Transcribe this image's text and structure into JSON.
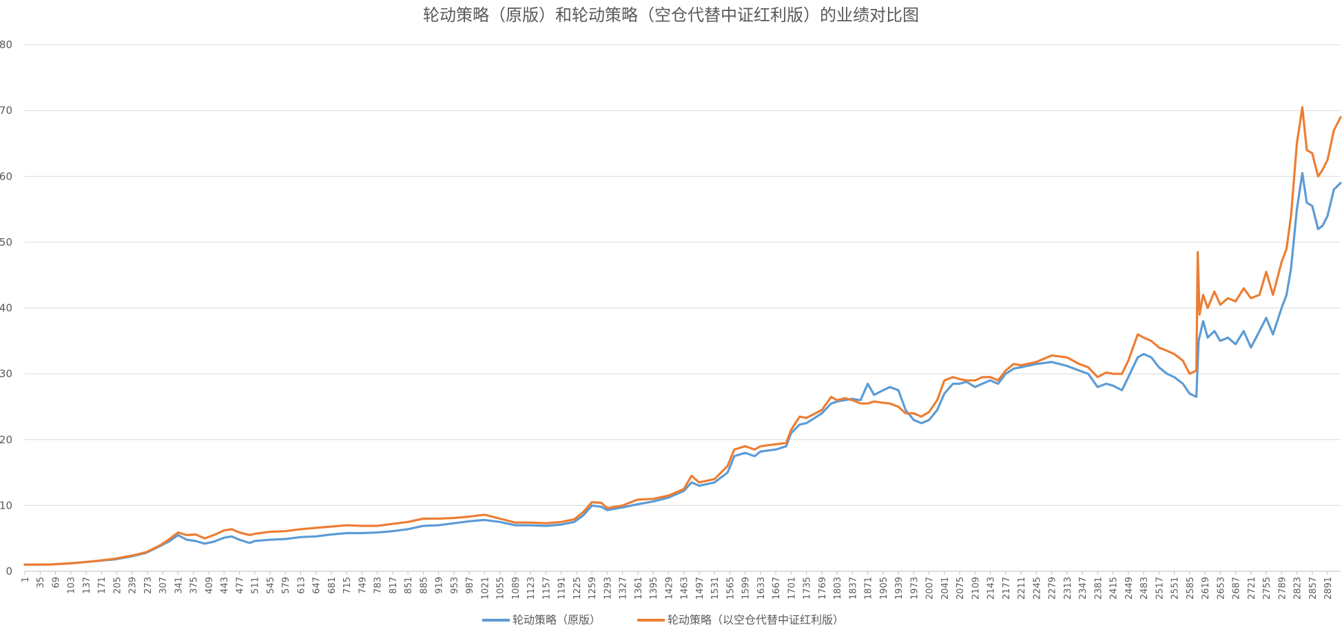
{
  "chart_data": {
    "type": "line",
    "title": "轮动策略（原版）和轮动策略（空仓代替中证红利版）的业绩对比图",
    "xlabel": "",
    "ylabel": "",
    "xlim": [
      1,
      2920
    ],
    "ylim": [
      0,
      80
    ],
    "y_ticks": [
      0,
      10,
      20,
      30,
      40,
      50,
      60,
      70,
      80
    ],
    "x_tick_labels": [
      "1",
      "35",
      "69",
      "103",
      "137",
      "171",
      "205",
      "239",
      "273",
      "307",
      "341",
      "375",
      "409",
      "443",
      "477",
      "511",
      "545",
      "579",
      "613",
      "647",
      "681",
      "715",
      "749",
      "783",
      "817",
      "851",
      "885",
      "919",
      "953",
      "987",
      "1021",
      "1055",
      "1089",
      "1123",
      "1157",
      "1191",
      "1225",
      "1259",
      "1293",
      "1327",
      "1361",
      "1395",
      "1429",
      "1463",
      "1497",
      "1531",
      "1565",
      "1599",
      "1633",
      "1667",
      "1701",
      "1735",
      "1769",
      "1803",
      "1837",
      "1871",
      "1905",
      "1939",
      "1973",
      "2007",
      "2041",
      "2075",
      "2109",
      "2143",
      "2177",
      "2211",
      "2245",
      "2279",
      "2313",
      "2347",
      "2381",
      "2415",
      "2449",
      "2483",
      "2517",
      "2551",
      "2585",
      "2619",
      "2653",
      "2687",
      "2721",
      "2755",
      "2789",
      "2823",
      "2857",
      "2891"
    ],
    "grid": "horizontal",
    "legend_position": "bottom",
    "series": [
      {
        "name": "轮动策略（原版）",
        "color": "#5b9bd5",
        "points": [
          [
            1,
            1.0
          ],
          [
            60,
            1.05
          ],
          [
            100,
            1.2
          ],
          [
            150,
            1.5
          ],
          [
            200,
            1.8
          ],
          [
            240,
            2.3
          ],
          [
            270,
            2.8
          ],
          [
            300,
            3.8
          ],
          [
            320,
            4.5
          ],
          [
            341,
            5.5
          ],
          [
            360,
            4.8
          ],
          [
            380,
            4.6
          ],
          [
            400,
            4.2
          ],
          [
            420,
            4.5
          ],
          [
            443,
            5.1
          ],
          [
            460,
            5.3
          ],
          [
            477,
            4.8
          ],
          [
            500,
            4.3
          ],
          [
            511,
            4.6
          ],
          [
            545,
            4.8
          ],
          [
            579,
            4.9
          ],
          [
            613,
            5.2
          ],
          [
            647,
            5.3
          ],
          [
            681,
            5.6
          ],
          [
            715,
            5.8
          ],
          [
            749,
            5.8
          ],
          [
            783,
            5.9
          ],
          [
            817,
            6.1
          ],
          [
            851,
            6.4
          ],
          [
            885,
            6.9
          ],
          [
            919,
            7.0
          ],
          [
            953,
            7.3
          ],
          [
            987,
            7.6
          ],
          [
            1021,
            7.8
          ],
          [
            1055,
            7.5
          ],
          [
            1089,
            7.0
          ],
          [
            1123,
            7.0
          ],
          [
            1157,
            6.9
          ],
          [
            1191,
            7.1
          ],
          [
            1220,
            7.5
          ],
          [
            1240,
            8.5
          ],
          [
            1259,
            10.0
          ],
          [
            1280,
            9.8
          ],
          [
            1293,
            9.3
          ],
          [
            1327,
            9.7
          ],
          [
            1361,
            10.2
          ],
          [
            1395,
            10.6
          ],
          [
            1429,
            11.2
          ],
          [
            1463,
            12.2
          ],
          [
            1480,
            13.5
          ],
          [
            1497,
            13.0
          ],
          [
            1531,
            13.5
          ],
          [
            1560,
            15.0
          ],
          [
            1575,
            17.5
          ],
          [
            1599,
            18.0
          ],
          [
            1620,
            17.5
          ],
          [
            1633,
            18.2
          ],
          [
            1667,
            18.5
          ],
          [
            1690,
            19.0
          ],
          [
            1701,
            21.0
          ],
          [
            1720,
            22.3
          ],
          [
            1735,
            22.5
          ],
          [
            1769,
            24.0
          ],
          [
            1790,
            25.5
          ],
          [
            1803,
            25.8
          ],
          [
            1820,
            26.0
          ],
          [
            1837,
            26.2
          ],
          [
            1855,
            26.0
          ],
          [
            1871,
            28.5
          ],
          [
            1885,
            26.8
          ],
          [
            1905,
            27.5
          ],
          [
            1920,
            28.0
          ],
          [
            1939,
            27.5
          ],
          [
            1955,
            24.5
          ],
          [
            1973,
            23.0
          ],
          [
            1990,
            22.5
          ],
          [
            2007,
            23.0
          ],
          [
            2025,
            24.5
          ],
          [
            2041,
            27.0
          ],
          [
            2060,
            28.5
          ],
          [
            2075,
            28.5
          ],
          [
            2090,
            28.8
          ],
          [
            2109,
            28.0
          ],
          [
            2125,
            28.5
          ],
          [
            2143,
            29.0
          ],
          [
            2160,
            28.5
          ],
          [
            2177,
            30.0
          ],
          [
            2195,
            30.8
          ],
          [
            2211,
            31.0
          ],
          [
            2245,
            31.5
          ],
          [
            2279,
            31.8
          ],
          [
            2313,
            31.2
          ],
          [
            2340,
            30.5
          ],
          [
            2360,
            30.0
          ],
          [
            2381,
            28.0
          ],
          [
            2400,
            28.5
          ],
          [
            2415,
            28.2
          ],
          [
            2435,
            27.5
          ],
          [
            2449,
            29.5
          ],
          [
            2470,
            32.5
          ],
          [
            2483,
            33.0
          ],
          [
            2500,
            32.5
          ],
          [
            2517,
            31.0
          ],
          [
            2535,
            30.0
          ],
          [
            2551,
            29.5
          ],
          [
            2570,
            28.5
          ],
          [
            2585,
            27.0
          ],
          [
            2600,
            26.5
          ],
          [
            2605,
            35.0
          ],
          [
            2615,
            38.0
          ],
          [
            2625,
            35.5
          ],
          [
            2640,
            36.5
          ],
          [
            2653,
            35.0
          ],
          [
            2670,
            35.5
          ],
          [
            2687,
            34.5
          ],
          [
            2705,
            36.5
          ],
          [
            2721,
            34.0
          ],
          [
            2740,
            36.5
          ],
          [
            2755,
            38.5
          ],
          [
            2770,
            36.0
          ],
          [
            2789,
            40.0
          ],
          [
            2800,
            42.0
          ],
          [
            2810,
            46.0
          ],
          [
            2823,
            55.0
          ],
          [
            2835,
            60.5
          ],
          [
            2845,
            56.0
          ],
          [
            2857,
            55.5
          ],
          [
            2870,
            52.0
          ],
          [
            2880,
            52.5
          ],
          [
            2891,
            54.0
          ],
          [
            2905,
            58.0
          ],
          [
            2920,
            59.0
          ]
        ]
      },
      {
        "name": "轮动策略（以空仓代替中证红利版）",
        "color": "#ed7d31",
        "points": [
          [
            1,
            1.0
          ],
          [
            60,
            1.05
          ],
          [
            100,
            1.2
          ],
          [
            150,
            1.5
          ],
          [
            200,
            1.9
          ],
          [
            240,
            2.4
          ],
          [
            270,
            2.9
          ],
          [
            300,
            3.9
          ],
          [
            320,
            4.8
          ],
          [
            341,
            5.9
          ],
          [
            360,
            5.5
          ],
          [
            380,
            5.6
          ],
          [
            400,
            5.0
          ],
          [
            420,
            5.5
          ],
          [
            443,
            6.2
          ],
          [
            460,
            6.4
          ],
          [
            477,
            5.9
          ],
          [
            500,
            5.5
          ],
          [
            511,
            5.7
          ],
          [
            545,
            6.0
          ],
          [
            579,
            6.1
          ],
          [
            613,
            6.4
          ],
          [
            647,
            6.6
          ],
          [
            681,
            6.8
          ],
          [
            715,
            7.0
          ],
          [
            749,
            6.9
          ],
          [
            783,
            6.9
          ],
          [
            817,
            7.2
          ],
          [
            851,
            7.5
          ],
          [
            885,
            8.0
          ],
          [
            919,
            8.0
          ],
          [
            953,
            8.1
          ],
          [
            987,
            8.3
          ],
          [
            1021,
            8.6
          ],
          [
            1055,
            8.0
          ],
          [
            1089,
            7.4
          ],
          [
            1123,
            7.4
          ],
          [
            1157,
            7.3
          ],
          [
            1191,
            7.5
          ],
          [
            1220,
            7.9
          ],
          [
            1240,
            9.0
          ],
          [
            1259,
            10.5
          ],
          [
            1280,
            10.4
          ],
          [
            1293,
            9.6
          ],
          [
            1327,
            10.0
          ],
          [
            1361,
            10.9
          ],
          [
            1395,
            11.0
          ],
          [
            1429,
            11.5
          ],
          [
            1463,
            12.5
          ],
          [
            1480,
            14.5
          ],
          [
            1497,
            13.5
          ],
          [
            1531,
            14.0
          ],
          [
            1560,
            16.0
          ],
          [
            1575,
            18.5
          ],
          [
            1599,
            19.0
          ],
          [
            1620,
            18.5
          ],
          [
            1633,
            19.0
          ],
          [
            1667,
            19.3
          ],
          [
            1690,
            19.5
          ],
          [
            1701,
            21.5
          ],
          [
            1720,
            23.5
          ],
          [
            1735,
            23.3
          ],
          [
            1769,
            24.5
          ],
          [
            1790,
            26.5
          ],
          [
            1803,
            26.0
          ],
          [
            1820,
            26.3
          ],
          [
            1837,
            26.0
          ],
          [
            1855,
            25.5
          ],
          [
            1871,
            25.5
          ],
          [
            1885,
            25.8
          ],
          [
            1905,
            25.6
          ],
          [
            1920,
            25.5
          ],
          [
            1939,
            25.0
          ],
          [
            1955,
            24.0
          ],
          [
            1973,
            24.0
          ],
          [
            1990,
            23.5
          ],
          [
            2007,
            24.2
          ],
          [
            2025,
            26.0
          ],
          [
            2041,
            29.0
          ],
          [
            2060,
            29.5
          ],
          [
            2075,
            29.2
          ],
          [
            2090,
            29.0
          ],
          [
            2109,
            29.0
          ],
          [
            2125,
            29.5
          ],
          [
            2143,
            29.5
          ],
          [
            2160,
            29.0
          ],
          [
            2177,
            30.5
          ],
          [
            2195,
            31.5
          ],
          [
            2211,
            31.3
          ],
          [
            2245,
            31.8
          ],
          [
            2279,
            32.8
          ],
          [
            2313,
            32.5
          ],
          [
            2340,
            31.5
          ],
          [
            2360,
            31.0
          ],
          [
            2381,
            29.5
          ],
          [
            2400,
            30.2
          ],
          [
            2415,
            30.0
          ],
          [
            2435,
            30.0
          ],
          [
            2449,
            32.0
          ],
          [
            2470,
            36.0
          ],
          [
            2483,
            35.5
          ],
          [
            2500,
            35.0
          ],
          [
            2517,
            34.0
          ],
          [
            2535,
            33.5
          ],
          [
            2551,
            33.0
          ],
          [
            2570,
            32.0
          ],
          [
            2585,
            30.0
          ],
          [
            2600,
            30.5
          ],
          [
            2603,
            48.5
          ],
          [
            2607,
            39.0
          ],
          [
            2615,
            42.0
          ],
          [
            2625,
            40.0
          ],
          [
            2640,
            42.5
          ],
          [
            2653,
            40.5
          ],
          [
            2670,
            41.5
          ],
          [
            2687,
            41.0
          ],
          [
            2705,
            43.0
          ],
          [
            2721,
            41.5
          ],
          [
            2740,
            42.0
          ],
          [
            2755,
            45.5
          ],
          [
            2770,
            42.0
          ],
          [
            2789,
            47.0
          ],
          [
            2800,
            49.0
          ],
          [
            2810,
            54.0
          ],
          [
            2823,
            65.0
          ],
          [
            2835,
            70.5
          ],
          [
            2845,
            64.0
          ],
          [
            2857,
            63.5
          ],
          [
            2870,
            60.0
          ],
          [
            2880,
            61.0
          ],
          [
            2891,
            62.5
          ],
          [
            2905,
            67.0
          ],
          [
            2920,
            69.0
          ]
        ]
      }
    ]
  }
}
